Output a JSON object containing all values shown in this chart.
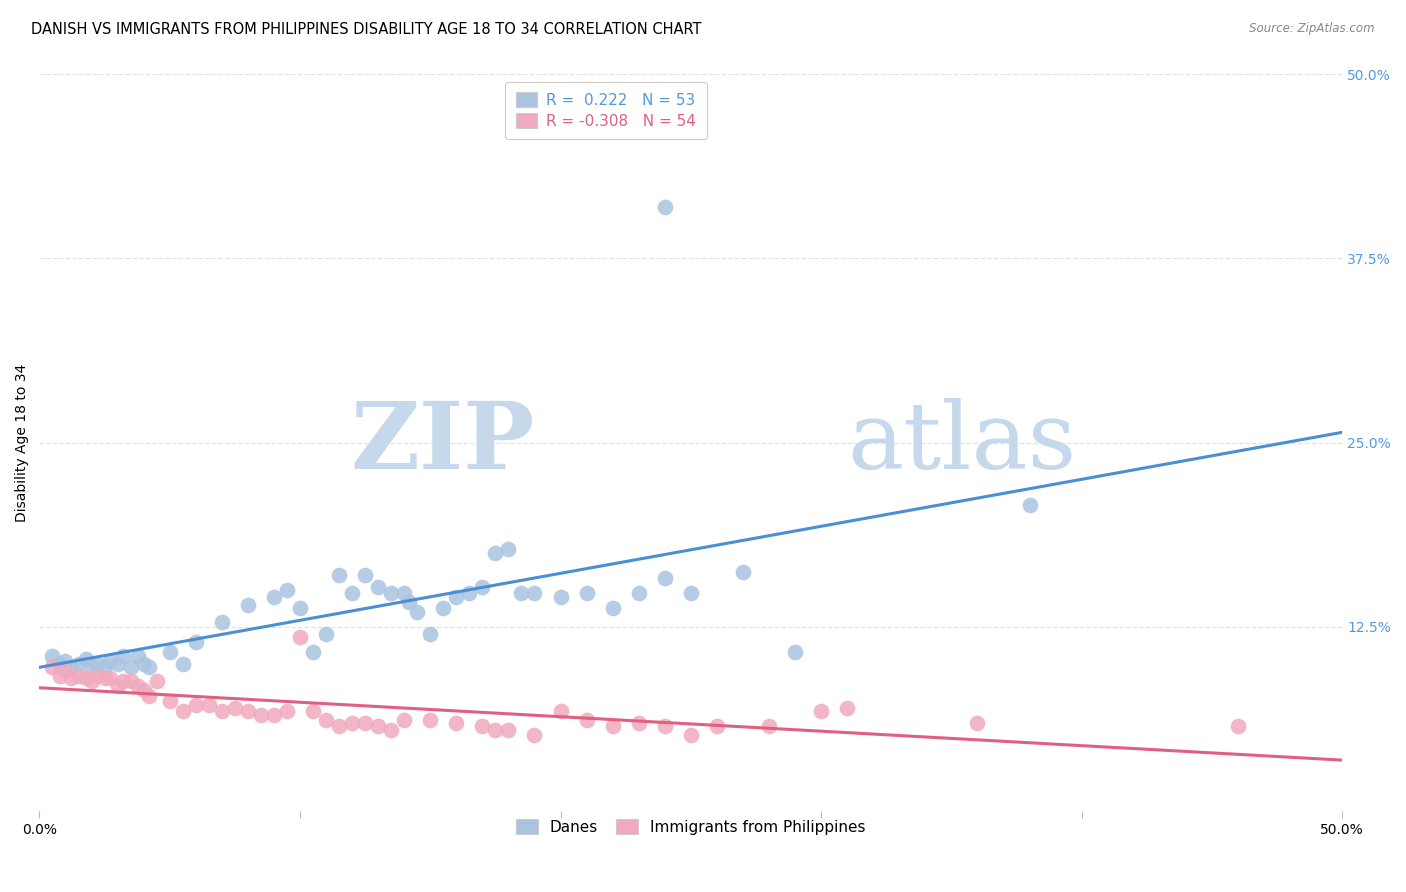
{
  "title": "DANISH VS IMMIGRANTS FROM PHILIPPINES DISABILITY AGE 18 TO 34 CORRELATION CHART",
  "source": "Source: ZipAtlas.com",
  "ylabel": "Disability Age 18 to 34",
  "xlim": [
    0.0,
    0.5
  ],
  "ylim": [
    0.0,
    0.5
  ],
  "danes_R": 0.222,
  "danes_N": 53,
  "phil_R": -0.308,
  "phil_N": 54,
  "danes_color": "#aac4e0",
  "phil_color": "#f0aabe",
  "danes_line_color": "#4a8fd4",
  "phil_line_color": "#e06080",
  "right_tick_color": "#5599dd",
  "grid_color": "#d8e4ee",
  "watermark_zip": "ZIP",
  "watermark_atlas": "atlas",
  "watermark_color": "#c5d8ec",
  "danes_scatter": [
    [
      0.005,
      0.105
    ],
    [
      0.008,
      0.1
    ],
    [
      0.01,
      0.102
    ],
    [
      0.012,
      0.098
    ],
    [
      0.015,
      0.1
    ],
    [
      0.018,
      0.103
    ],
    [
      0.02,
      0.098
    ],
    [
      0.022,
      0.1
    ],
    [
      0.025,
      0.098
    ],
    [
      0.027,
      0.102
    ],
    [
      0.03,
      0.1
    ],
    [
      0.032,
      0.105
    ],
    [
      0.035,
      0.098
    ],
    [
      0.038,
      0.105
    ],
    [
      0.04,
      0.1
    ],
    [
      0.042,
      0.098
    ],
    [
      0.05,
      0.108
    ],
    [
      0.055,
      0.1
    ],
    [
      0.06,
      0.115
    ],
    [
      0.07,
      0.128
    ],
    [
      0.08,
      0.14
    ],
    [
      0.09,
      0.145
    ],
    [
      0.095,
      0.15
    ],
    [
      0.1,
      0.138
    ],
    [
      0.105,
      0.108
    ],
    [
      0.11,
      0.12
    ],
    [
      0.115,
      0.16
    ],
    [
      0.12,
      0.148
    ],
    [
      0.125,
      0.16
    ],
    [
      0.13,
      0.152
    ],
    [
      0.135,
      0.148
    ],
    [
      0.14,
      0.148
    ],
    [
      0.142,
      0.142
    ],
    [
      0.145,
      0.135
    ],
    [
      0.15,
      0.12
    ],
    [
      0.155,
      0.138
    ],
    [
      0.16,
      0.145
    ],
    [
      0.165,
      0.148
    ],
    [
      0.17,
      0.152
    ],
    [
      0.175,
      0.175
    ],
    [
      0.18,
      0.178
    ],
    [
      0.185,
      0.148
    ],
    [
      0.19,
      0.148
    ],
    [
      0.2,
      0.145
    ],
    [
      0.21,
      0.148
    ],
    [
      0.22,
      0.138
    ],
    [
      0.23,
      0.148
    ],
    [
      0.24,
      0.158
    ],
    [
      0.25,
      0.148
    ],
    [
      0.27,
      0.162
    ],
    [
      0.29,
      0.108
    ],
    [
      0.38,
      0.208
    ],
    [
      0.24,
      0.41
    ]
  ],
  "phil_scatter": [
    [
      0.005,
      0.098
    ],
    [
      0.008,
      0.092
    ],
    [
      0.01,
      0.095
    ],
    [
      0.012,
      0.09
    ],
    [
      0.015,
      0.092
    ],
    [
      0.018,
      0.09
    ],
    [
      0.02,
      0.088
    ],
    [
      0.022,
      0.092
    ],
    [
      0.025,
      0.09
    ],
    [
      0.027,
      0.09
    ],
    [
      0.03,
      0.085
    ],
    [
      0.032,
      0.088
    ],
    [
      0.035,
      0.088
    ],
    [
      0.038,
      0.085
    ],
    [
      0.04,
      0.082
    ],
    [
      0.042,
      0.078
    ],
    [
      0.045,
      0.088
    ],
    [
      0.05,
      0.075
    ],
    [
      0.055,
      0.068
    ],
    [
      0.06,
      0.072
    ],
    [
      0.065,
      0.072
    ],
    [
      0.07,
      0.068
    ],
    [
      0.075,
      0.07
    ],
    [
      0.08,
      0.068
    ],
    [
      0.085,
      0.065
    ],
    [
      0.09,
      0.065
    ],
    [
      0.095,
      0.068
    ],
    [
      0.1,
      0.118
    ],
    [
      0.105,
      0.068
    ],
    [
      0.11,
      0.062
    ],
    [
      0.115,
      0.058
    ],
    [
      0.12,
      0.06
    ],
    [
      0.125,
      0.06
    ],
    [
      0.13,
      0.058
    ],
    [
      0.135,
      0.055
    ],
    [
      0.14,
      0.062
    ],
    [
      0.15,
      0.062
    ],
    [
      0.16,
      0.06
    ],
    [
      0.17,
      0.058
    ],
    [
      0.175,
      0.055
    ],
    [
      0.18,
      0.055
    ],
    [
      0.19,
      0.052
    ],
    [
      0.2,
      0.068
    ],
    [
      0.21,
      0.062
    ],
    [
      0.22,
      0.058
    ],
    [
      0.23,
      0.06
    ],
    [
      0.24,
      0.058
    ],
    [
      0.25,
      0.052
    ],
    [
      0.26,
      0.058
    ],
    [
      0.28,
      0.058
    ],
    [
      0.3,
      0.068
    ],
    [
      0.31,
      0.07
    ],
    [
      0.36,
      0.06
    ],
    [
      0.46,
      0.058
    ]
  ],
  "danes_legend_facecolor": "#aac4e0",
  "phil_legend_facecolor": "#f0aabe",
  "title_fontsize": 10.5,
  "axis_label_fontsize": 10,
  "tick_fontsize": 10,
  "legend_fontsize": 11
}
